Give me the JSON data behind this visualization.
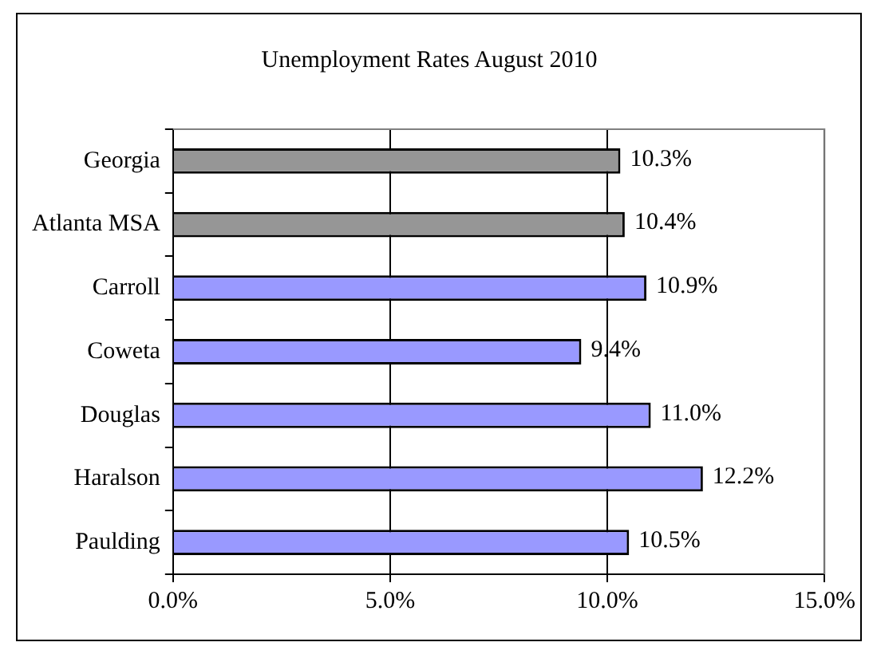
{
  "chart_data": {
    "type": "bar",
    "orientation": "horizontal",
    "title": "Unemployment Rates August 2010",
    "categories": [
      "Georgia",
      "Atlanta MSA",
      "Carroll",
      "Coweta",
      "Douglas",
      "Haralson",
      "Paulding"
    ],
    "values": [
      10.3,
      10.4,
      10.9,
      9.4,
      11.0,
      12.2,
      10.5
    ],
    "colors": [
      "#969696",
      "#969696",
      "#9999ff",
      "#9999ff",
      "#9999ff",
      "#9999ff",
      "#9999ff"
    ],
    "value_labels": [
      "10.3%",
      "10.4%",
      "10.9%",
      "9.4%",
      "11.0%",
      "12.2%",
      "10.5%"
    ],
    "xlim": [
      0,
      15
    ],
    "xticks": [
      {
        "value": 0,
        "label": "0.0%"
      },
      {
        "value": 5,
        "label": "5.0%"
      },
      {
        "value": 10,
        "label": "10.0%"
      },
      {
        "value": 15,
        "label": "15.0%"
      }
    ],
    "grid": "x",
    "legend": false
  }
}
